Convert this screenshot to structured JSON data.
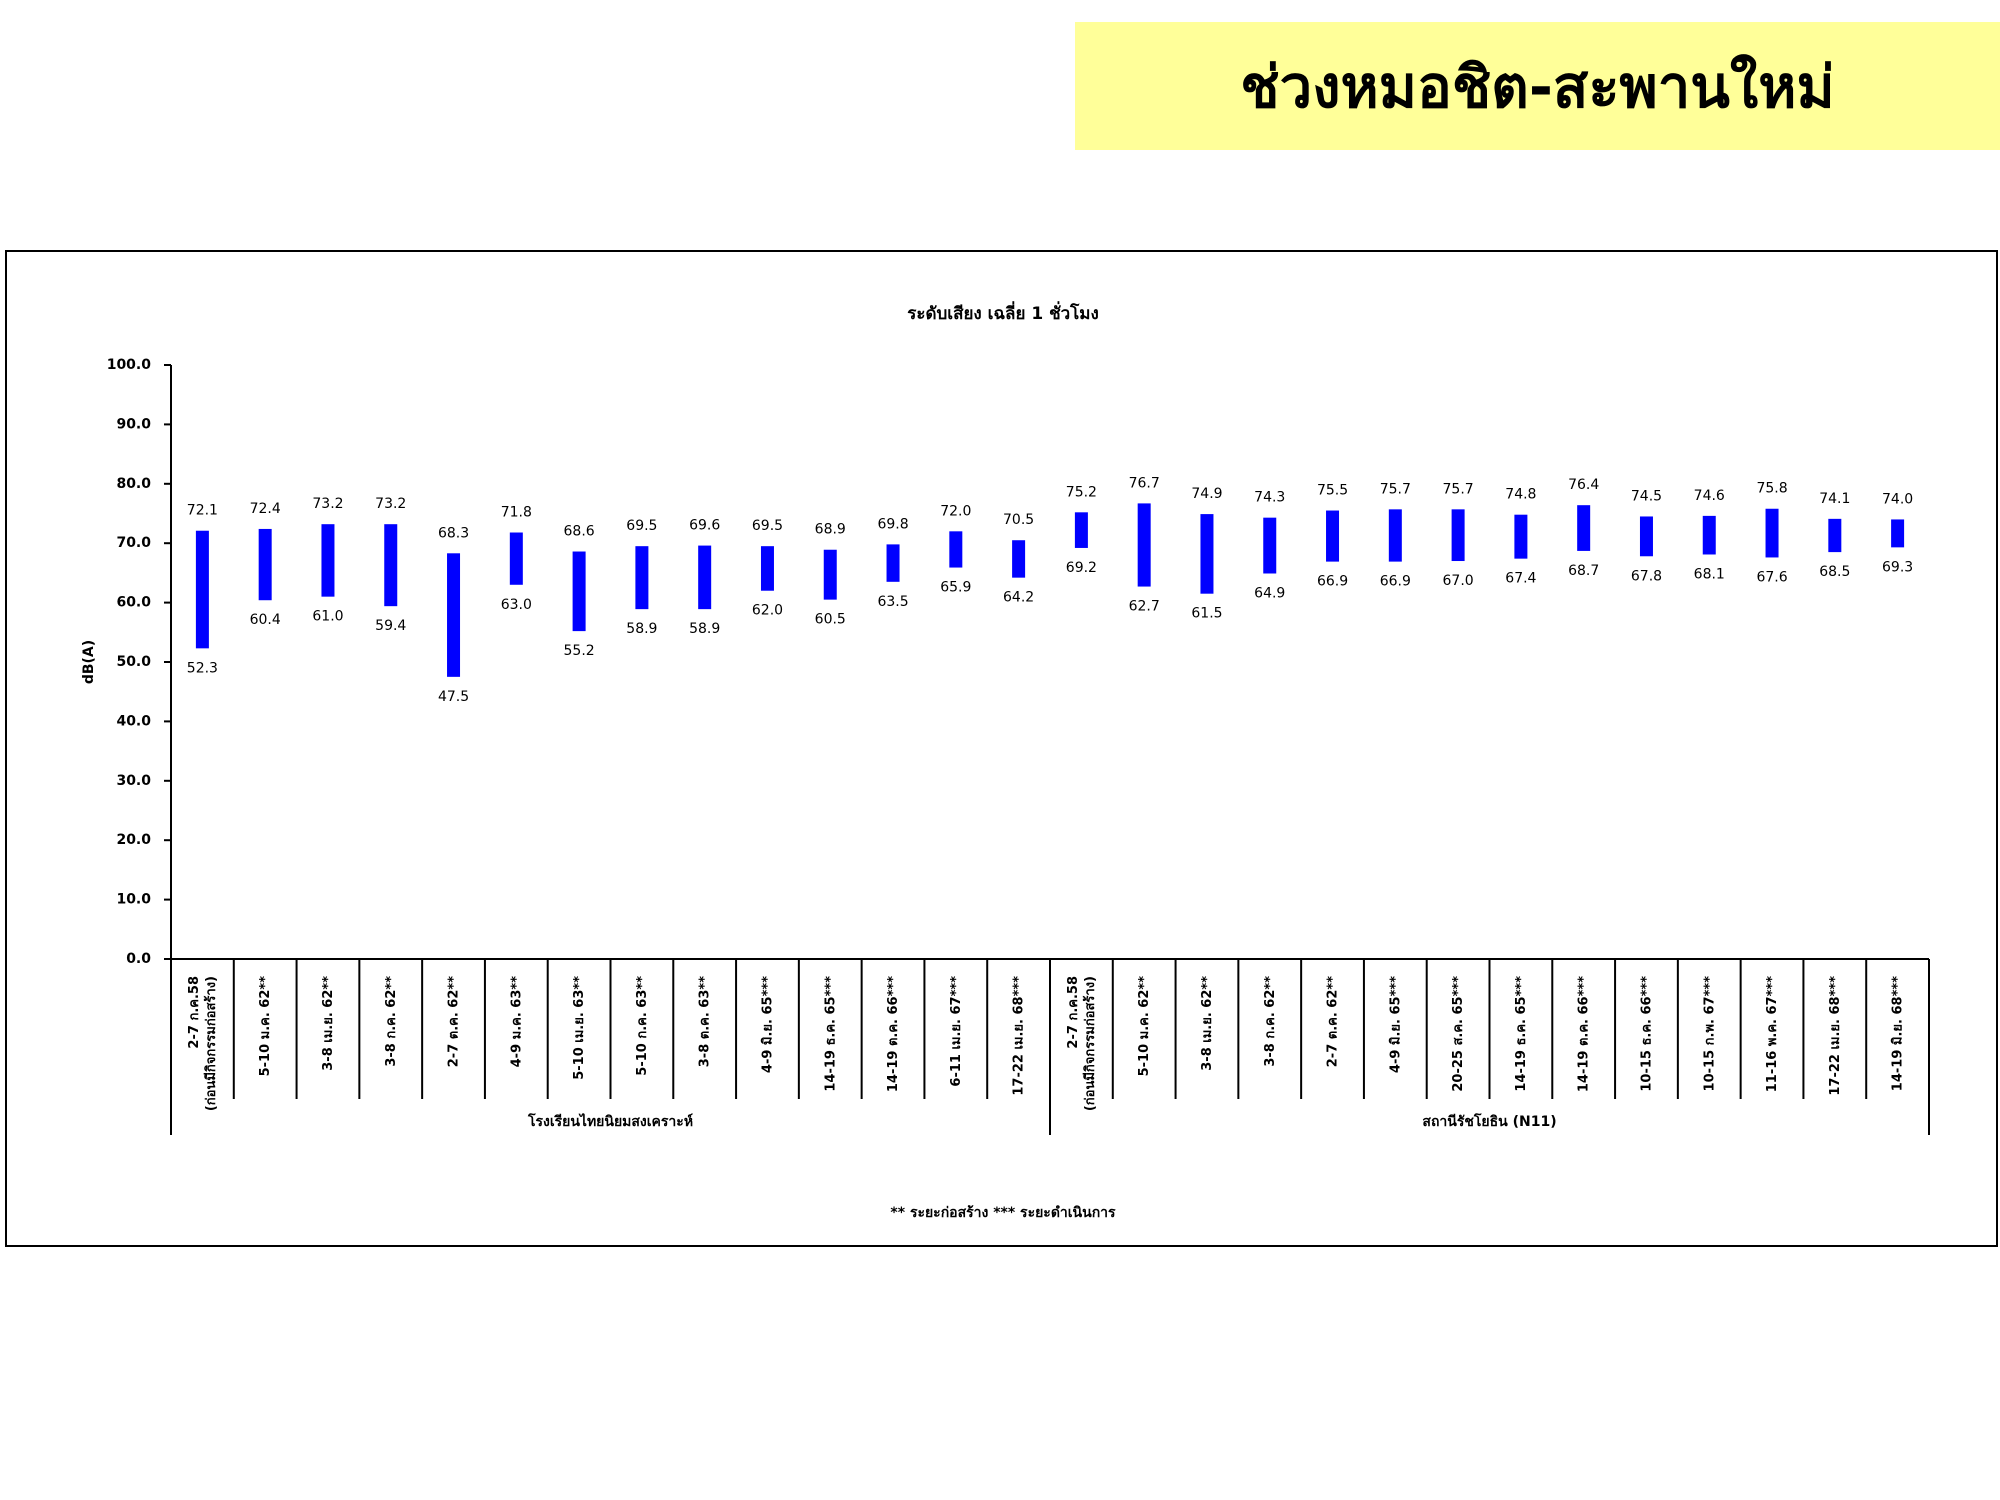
{
  "header": {
    "title": "ช่วงหมอชิต-สะพานใหม่"
  },
  "chart_data": {
    "type": "range-bar",
    "title": "ระดับเสียง เฉลี่ย 1 ชั่วโมง",
    "y_label": "dB(A)",
    "footnote": "** ระยะก่อสร้าง    *** ระยะดำเนินการ",
    "color": "#0000ff",
    "ylim": [
      0,
      100
    ],
    "yticks": [
      {
        "value": 0,
        "label": "0.0"
      },
      {
        "value": 10,
        "label": "10.0"
      },
      {
        "value": 20,
        "label": "20.0"
      },
      {
        "value": 30,
        "label": "30.0"
      },
      {
        "value": 40,
        "label": "40.0"
      },
      {
        "value": 50,
        "label": "50.0"
      },
      {
        "value": 60,
        "label": "60.0"
      },
      {
        "value": 70,
        "label": "70.0"
      },
      {
        "value": 80,
        "label": "80.0"
      },
      {
        "value": 90,
        "label": "90.0"
      },
      {
        "value": 100,
        "label": "100.0"
      }
    ],
    "groups": [
      {
        "name": "โรงเรียนไทยนิยมสงเคราะห์",
        "categories": [
          "2-7 ก.ค.58\n(ก่อนมีกิจกรรมก่อสร้าง)",
          "5-10 ม.ค. 62**",
          "3-8 เม.ย. 62**",
          "3-8 ก.ค. 62**",
          "2-7 ต.ค. 62**",
          "4-9 ม.ค. 63**",
          "5-10 เม.ย. 63**",
          "5-10 ก.ค. 63**",
          "3-8 ต.ค. 63**",
          "4-9 มิ.ย. 65***",
          "14-19 ธ.ค. 65***",
          "14-19 ต.ค. 66***",
          "6-11 เม.ย. 67***",
          "17-22 เม.ย. 68***"
        ],
        "high": [
          72.1,
          72.4,
          73.2,
          73.2,
          68.3,
          71.8,
          68.6,
          69.5,
          69.6,
          69.5,
          68.9,
          69.8,
          72.0,
          70.5
        ],
        "high_labels": [
          "72.1",
          "72.4",
          "73.2",
          "73.2",
          "68.3",
          "71.8",
          "68.6",
          "69.5",
          "69.6",
          "69.5",
          "68.9",
          "69.8",
          "72.0",
          "70.5"
        ],
        "low": [
          52.3,
          60.4,
          61.0,
          59.4,
          47.5,
          63.0,
          55.2,
          58.9,
          58.9,
          62.0,
          60.5,
          63.5,
          65.9,
          64.2
        ],
        "low_labels": [
          "52.3",
          "60.4",
          "61.0",
          "59.4",
          "47.5",
          "63.0",
          "55.2",
          "58.9",
          "58.9",
          "62.0",
          "60.5",
          "63.5",
          "65.9",
          "64.2"
        ]
      },
      {
        "name": "สถานีรัชโยธิน (N11)",
        "categories": [
          "2-7 ก.ค.58\n(ก่อนมีกิจกรรมก่อสร้าง)",
          "5-10 ม.ค. 62**",
          "3-8 เม.ย. 62**",
          "3-8 ก.ค. 62**",
          "2-7 ต.ค. 62**",
          "4-9 มิ.ย. 65***",
          "20-25 ส.ค. 65***",
          "14-19 ธ.ค. 65***",
          "14-19 ต.ค. 66***",
          "10-15 ธ.ค. 66***",
          "10-15 ก.พ. 67***",
          "11-16 พ.ค. 67***",
          "17-22 เม.ย. 68***",
          "14-19 มิ.ย. 68***"
        ],
        "high": [
          75.2,
          76.7,
          74.9,
          74.3,
          75.5,
          75.7,
          75.7,
          74.8,
          76.4,
          74.5,
          74.6,
          75.8,
          74.1,
          74.0
        ],
        "high_labels": [
          "75.2",
          "76.7",
          "74.9",
          "74.3",
          "75.5",
          "75.7",
          "75.7",
          "74.8",
          "76.4",
          "74.5",
          "74.6",
          "75.8",
          "74.1",
          "74.0"
        ],
        "low": [
          69.2,
          62.7,
          61.5,
          64.9,
          66.9,
          66.9,
          67.0,
          67.4,
          68.7,
          67.8,
          68.1,
          67.6,
          68.5,
          69.3
        ],
        "low_labels": [
          "69.2",
          "62.7",
          "61.5",
          "64.9",
          "66.9",
          "66.9",
          "67.0",
          "67.4",
          "68.7",
          "67.8",
          "68.1",
          "67.6",
          "68.5",
          "69.3"
        ]
      }
    ]
  }
}
